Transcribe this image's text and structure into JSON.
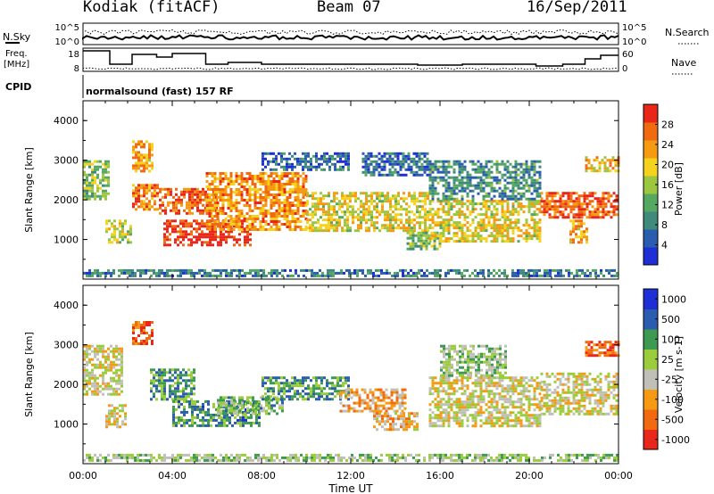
{
  "header": {
    "station": "Kodiak (fitACF)",
    "beam": "Beam 07",
    "date": "16/Sep/2011"
  },
  "status_panels": {
    "nsky_label": "N.Sky",
    "nsearch_label": "N.Search",
    "nsky_ticks": [
      "10^5",
      "10^0"
    ],
    "nsearch_ticks": [
      "10^5",
      "10^0"
    ],
    "freq_label_1": "Freq.",
    "freq_label_2": "[MHz]",
    "freq_ticks": [
      "18",
      "8"
    ],
    "nave_label": "Nave",
    "nave_ticks": [
      "60",
      "0"
    ],
    "cpid_label": "CPID",
    "cpid_text": "normalsound (fast) 157 RF"
  },
  "chart_data": [
    {
      "type": "heatmap",
      "title": "",
      "ylabel": "Slant Range [km]",
      "xlabel": "",
      "ylim": [
        0,
        4500
      ],
      "yticks": [
        "1000",
        "2000",
        "3000",
        "4000"
      ],
      "xlim_hours": [
        0,
        24
      ],
      "colorbar_label": "Power [dB]",
      "colorbar_ticks": [
        "4",
        "8",
        "12",
        "16",
        "20",
        "24",
        "28"
      ],
      "colorbar_range": [
        0,
        32
      ],
      "colors": [
        "#1f2fd6",
        "#2a5cb0",
        "#3f8a7a",
        "#54a860",
        "#9cc640",
        "#f5d21e",
        "#f59a12",
        "#f26a10",
        "#e8261a"
      ],
      "bands": [
        {
          "t0": 0.0,
          "t1": 1.2,
          "r0": 2000,
          "r1": 3000,
          "level": 0.45
        },
        {
          "t0": 1.0,
          "t1": 2.2,
          "r0": 900,
          "r1": 1500,
          "level": 0.55
        },
        {
          "t0": 2.2,
          "t1": 3.4,
          "r0": 1700,
          "r1": 2400,
          "level": 0.8
        },
        {
          "t0": 2.2,
          "t1": 3.2,
          "r0": 2700,
          "r1": 3500,
          "level": 0.7
        },
        {
          "t0": 3.4,
          "t1": 6.0,
          "r0": 1600,
          "r1": 2300,
          "level": 0.85
        },
        {
          "t0": 3.6,
          "t1": 7.6,
          "r0": 800,
          "r1": 1500,
          "level": 0.95
        },
        {
          "t0": 5.5,
          "t1": 10.0,
          "r0": 1200,
          "r1": 2700,
          "level": 0.75
        },
        {
          "t0": 8.0,
          "t1": 12.0,
          "r0": 2700,
          "r1": 3200,
          "level": 0.2
        },
        {
          "t0": 10.0,
          "t1": 15.5,
          "r0": 1200,
          "r1": 2200,
          "level": 0.6
        },
        {
          "t0": 12.5,
          "t1": 15.5,
          "r0": 2600,
          "r1": 3200,
          "level": 0.2
        },
        {
          "t0": 14.5,
          "t1": 16.0,
          "r0": 700,
          "r1": 1200,
          "level": 0.45
        },
        {
          "t0": 15.5,
          "t1": 20.5,
          "r0": 900,
          "r1": 2000,
          "level": 0.6
        },
        {
          "t0": 15.5,
          "t1": 20.5,
          "r0": 2000,
          "r1": 3000,
          "level": 0.3
        },
        {
          "t0": 20.5,
          "t1": 24.0,
          "r0": 1500,
          "r1": 2200,
          "level": 0.85
        },
        {
          "t0": 21.8,
          "t1": 22.6,
          "r0": 900,
          "r1": 1500,
          "level": 0.7
        },
        {
          "t0": 22.5,
          "t1": 24.0,
          "r0": 2700,
          "r1": 3100,
          "level": 0.65
        },
        {
          "t0": 0.0,
          "t1": 24.0,
          "r0": 60,
          "r1": 250,
          "level": 0.25
        }
      ]
    },
    {
      "type": "heatmap",
      "title": "",
      "ylabel": "Slant Range [km]",
      "xlabel": "Time UT",
      "ylim": [
        0,
        4500
      ],
      "yticks": [
        "1000",
        "2000",
        "3000",
        "4000"
      ],
      "xlim_hours": [
        0,
        24
      ],
      "xticks": [
        "00:00",
        "04:00",
        "08:00",
        "12:00",
        "16:00",
        "20:00",
        "00:00"
      ],
      "colorbar_label": "Velocity [m s-1]",
      "colorbar_ticks": [
        "1000",
        "500",
        "100",
        "25",
        "-25",
        "-100",
        "-500",
        "-1000"
      ],
      "colors": [
        "#e8261a",
        "#f26a10",
        "#f59a12",
        "#c0c0b8",
        "#9acc3c",
        "#3d9a50",
        "#2a5cb0",
        "#1f2fd6"
      ],
      "bands": [
        {
          "t0": 0.0,
          "t1": 1.8,
          "r0": 1700,
          "r1": 3000,
          "level": 0.45
        },
        {
          "t0": 1.0,
          "t1": 2.0,
          "r0": 900,
          "r1": 1500,
          "level": 0.45
        },
        {
          "t0": 2.2,
          "t1": 3.2,
          "r0": 3000,
          "r1": 3600,
          "level": 0.15
        },
        {
          "t0": 3.0,
          "t1": 5.0,
          "r0": 1600,
          "r1": 2400,
          "level": 0.7
        },
        {
          "t0": 4.0,
          "t1": 8.0,
          "r0": 900,
          "r1": 1600,
          "level": 0.72
        },
        {
          "t0": 6.0,
          "t1": 9.0,
          "r0": 1200,
          "r1": 1700,
          "level": 0.6
        },
        {
          "t0": 8.0,
          "t1": 12.0,
          "r0": 1600,
          "r1": 2200,
          "level": 0.7
        },
        {
          "t0": 11.5,
          "t1": 14.5,
          "r0": 1300,
          "r1": 1900,
          "level": 0.3
        },
        {
          "t0": 13.0,
          "t1": 15.0,
          "r0": 800,
          "r1": 1300,
          "level": 0.35
        },
        {
          "t0": 15.5,
          "t1": 20.5,
          "r0": 900,
          "r1": 2200,
          "level": 0.45
        },
        {
          "t0": 16.0,
          "t1": 19.0,
          "r0": 2200,
          "r1": 3000,
          "level": 0.55
        },
        {
          "t0": 20.5,
          "t1": 24.0,
          "r0": 1200,
          "r1": 2300,
          "level": 0.45
        },
        {
          "t0": 22.5,
          "t1": 24.0,
          "r0": 2700,
          "r1": 3100,
          "level": 0.15
        },
        {
          "t0": 0.0,
          "t1": 24.0,
          "r0": 60,
          "r1": 250,
          "level": 0.55
        }
      ]
    }
  ]
}
